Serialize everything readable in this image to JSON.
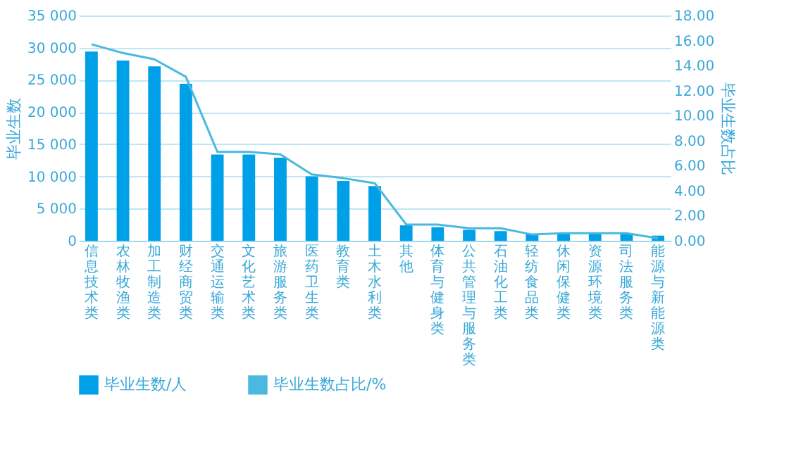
{
  "chart_data": {
    "type": "bar",
    "categories": [
      "信息技术类",
      "农林牧渔类",
      "加工制造类",
      "财经商贸类",
      "交通运输类",
      "文化艺术类",
      "旅游服务类",
      "医药卫生类",
      "教育类",
      "土木水利类",
      "其他",
      "体育与健身类",
      "公共管理与服务类",
      "石油化工类",
      "轻纺食品类",
      "休闲保健类",
      "资源环境类",
      "司法服务类",
      "能源与新能源类"
    ],
    "series": [
      {
        "name": "毕业生数/人",
        "color": "#00a0e9",
        "values": [
          29400,
          28000,
          27100,
          24400,
          13400,
          13400,
          12900,
          10000,
          9300,
          8500,
          2400,
          2100,
          1700,
          1500,
          1000,
          1200,
          1200,
          1200,
          800
        ]
      },
      {
        "name": "毕业生数占比/%",
        "type": "line",
        "axis": "y2",
        "color": "#4ab8e0",
        "values": [
          15.7,
          15.0,
          14.5,
          13.1,
          7.1,
          7.1,
          6.9,
          5.3,
          5.0,
          4.6,
          1.3,
          1.3,
          1.0,
          1.0,
          0.5,
          0.6,
          0.6,
          0.6,
          0.2
        ]
      }
    ],
    "ylabel": "毕业生数",
    "y2label": "毕业生数占比",
    "ylim": [
      0,
      35000
    ],
    "yticks": [
      {
        "value": 0,
        "label": "0"
      },
      {
        "value": 5000,
        "label": "5 000"
      },
      {
        "value": 10000,
        "label": "10 000"
      },
      {
        "value": 15000,
        "label": "15 000"
      },
      {
        "value": 20000,
        "label": "20 000"
      },
      {
        "value": 25000,
        "label": "25 000"
      },
      {
        "value": 30000,
        "label": "30 000"
      },
      {
        "value": 35000,
        "label": "35 000"
      }
    ],
    "y2lim": [
      0,
      18
    ],
    "y2ticks": [
      {
        "value": 0,
        "label": "0.00"
      },
      {
        "value": 2,
        "label": "2.00"
      },
      {
        "value": 4,
        "label": "4.00"
      },
      {
        "value": 6,
        "label": "6.00"
      },
      {
        "value": 8,
        "label": "8.00"
      },
      {
        "value": 10,
        "label": "10.00"
      },
      {
        "value": 12,
        "label": "12.00"
      },
      {
        "value": 14,
        "label": "14.00"
      },
      {
        "value": 16,
        "label": "16.00"
      },
      {
        "value": 18,
        "label": "18.00"
      }
    ],
    "grid": "y",
    "legend": "bottom",
    "marker": "none",
    "line_style": "solid"
  }
}
